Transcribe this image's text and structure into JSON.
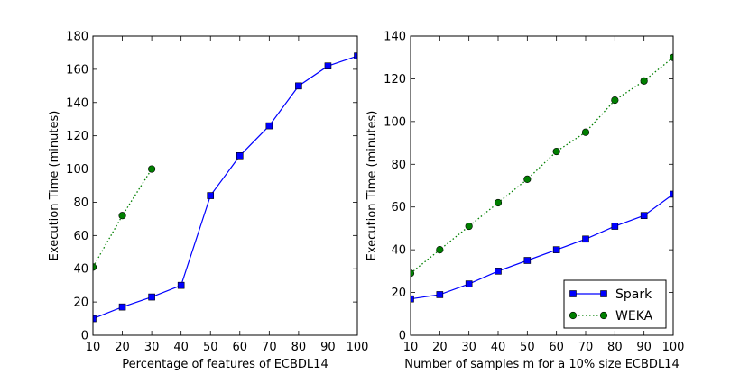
{
  "chart_data": [
    {
      "type": "line",
      "title": "",
      "xlabel": "Percentage of features of ECBDL14",
      "ylabel": "Execution Time (minutes)",
      "xlim": [
        10,
        100
      ],
      "ylim": [
        0,
        180
      ],
      "xticks": [
        10,
        20,
        30,
        40,
        50,
        60,
        70,
        80,
        90,
        100
      ],
      "yticks": [
        0,
        20,
        40,
        60,
        80,
        100,
        120,
        140,
        160,
        180
      ],
      "grid": false,
      "series": [
        {
          "name": "Spark",
          "color": "#0000ff",
          "marker": "square",
          "line_style": "solid",
          "x": [
            10,
            20,
            30,
            40,
            50,
            60,
            70,
            80,
            90,
            100
          ],
          "y": [
            10,
            17,
            23,
            30,
            84,
            108,
            126,
            150,
            162,
            168
          ]
        },
        {
          "name": "WEKA",
          "color": "#007f00",
          "marker": "circle",
          "line_style": "dotted",
          "x": [
            10,
            20,
            30
          ],
          "y": [
            41,
            72,
            100
          ]
        }
      ]
    },
    {
      "type": "line",
      "title": "",
      "xlabel": "Number of samples m for a 10% size ECBDL14",
      "ylabel": "Execution Time (minutes)",
      "xlim": [
        10,
        100
      ],
      "ylim": [
        0,
        140
      ],
      "xticks": [
        10,
        20,
        30,
        40,
        50,
        60,
        70,
        80,
        90,
        100
      ],
      "yticks": [
        0,
        20,
        40,
        60,
        80,
        100,
        120,
        140
      ],
      "grid": false,
      "legend": {
        "placement": "lower-right",
        "entries": [
          "Spark",
          "WEKA"
        ]
      },
      "series": [
        {
          "name": "Spark",
          "color": "#0000ff",
          "marker": "square",
          "line_style": "solid",
          "x": [
            10,
            20,
            30,
            40,
            50,
            60,
            70,
            80,
            90,
            100
          ],
          "y": [
            17,
            19,
            24,
            30,
            35,
            40,
            45,
            51,
            56,
            66
          ]
        },
        {
          "name": "WEKA",
          "color": "#007f00",
          "marker": "circle",
          "line_style": "dotted",
          "x": [
            10,
            20,
            30,
            40,
            50,
            60,
            70,
            80,
            90,
            100
          ],
          "y": [
            29,
            40,
            51,
            62,
            73,
            86,
            95,
            110,
            119,
            130
          ]
        }
      ]
    }
  ]
}
